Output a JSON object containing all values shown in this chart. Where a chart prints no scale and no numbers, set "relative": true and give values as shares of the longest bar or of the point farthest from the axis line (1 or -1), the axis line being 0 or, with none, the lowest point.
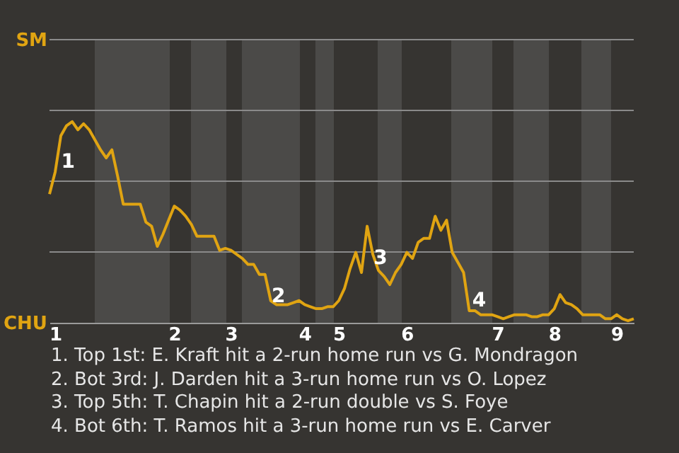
{
  "chart_data": {
    "type": "line",
    "relative": true,
    "categories": [
      null,
      "1",
      null,
      null,
      null,
      null,
      null,
      null,
      null,
      null,
      null,
      null,
      null,
      null,
      null,
      null,
      null,
      null,
      null,
      null,
      null,
      null,
      "2",
      null,
      null,
      null,
      null,
      null,
      null,
      null,
      null,
      null,
      "3",
      null,
      null,
      null,
      null,
      null,
      null,
      null,
      null,
      null,
      null,
      null,
      null,
      "4",
      null,
      null,
      null,
      null,
      null,
      "5",
      null,
      null,
      null,
      null,
      null,
      null,
      null,
      null,
      null,
      null,
      null,
      "6",
      null,
      null,
      null,
      null,
      null,
      null,
      null,
      null,
      null,
      null,
      null,
      null,
      null,
      null,
      null,
      "7",
      null,
      null,
      null,
      null,
      null,
      null,
      null,
      null,
      null,
      "8",
      null,
      null,
      null,
      null,
      null,
      null,
      null,
      null,
      null,
      null,
      "9",
      null,
      null,
      null
    ],
    "series": [
      {
        "color": "#e0a412",
        "values": [
          0.64,
          0.75,
          0.93,
          0.98,
          1,
          0.96,
          0.99,
          0.96,
          0.91,
          0.86,
          0.82,
          0.86,
          0.73,
          0.59,
          0.59,
          0.59,
          0.59,
          0.5,
          0.48,
          0.38,
          0.44,
          0.51,
          0.58,
          0.56,
          0.53,
          0.49,
          0.43,
          0.43,
          0.43,
          0.43,
          0.36,
          0.37,
          0.36,
          0.34,
          0.32,
          0.29,
          0.29,
          0.24,
          0.24,
          0.11,
          0.09,
          0.09,
          0.09,
          0.1,
          0.11,
          0.09,
          0.08,
          0.07,
          0.07,
          0.08,
          0.08,
          0.11,
          0.17,
          0.27,
          0.35,
          0.25,
          0.48,
          0.34,
          0.26,
          0.23,
          0.19,
          0.25,
          0.29,
          0.35,
          0.32,
          0.4,
          0.42,
          0.42,
          0.53,
          0.46,
          0.51,
          0.35,
          0.3,
          0.25,
          0.06,
          0.06,
          0.04,
          0.04,
          0.04,
          0.03,
          0.02,
          0.03,
          0.04,
          0.04,
          0.04,
          0.03,
          0.03,
          0.04,
          0.04,
          0.07,
          0.14,
          0.1,
          0.09,
          0.07,
          0.04,
          0.04,
          0.04,
          0.04,
          0.02,
          0.02,
          0.04,
          0.02,
          0.01,
          0.02
        ]
      }
    ],
    "ref_lines": [
      {
        "axis": "y",
        "value": 0.352,
        "color": "#8a8a8a"
      },
      {
        "axis": "y",
        "value": 0.704,
        "color": "#8a8a8a"
      },
      {
        "axis": "y",
        "value": 1.056,
        "color": "#8a8a8a"
      },
      {
        "axis": "y",
        "value": 1.408,
        "color": "#8a8a8a"
      }
    ],
    "annotations": [
      "SM",
      "CHU",
      "1",
      "2",
      "3",
      "4",
      "1. Top 1st: E. Kraft hit a 2-run home run vs G. Mondragon",
      "2. Bot 3rd: J. Darden hit a 3-run home run vs O. Lopez",
      "3. Top 5th: T. Chapin hit a 2-run double vs S. Foye",
      "4. Bot 6th: T. Ramos hit a 3-run home run vs E. Carver"
    ]
  }
}
